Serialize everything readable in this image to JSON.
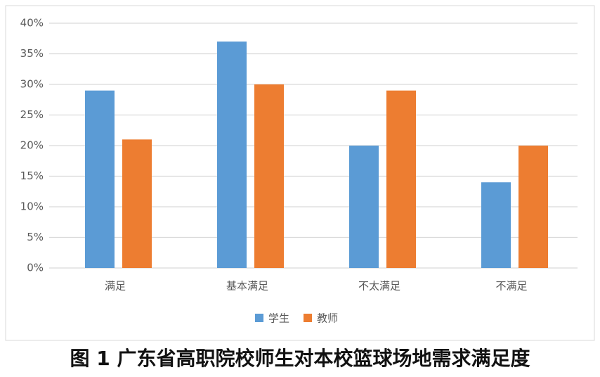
{
  "chart_data": {
    "type": "bar",
    "categories": [
      "满足",
      "基本满足",
      "不太满足",
      "不满足"
    ],
    "series": [
      {
        "name": "学生",
        "color": "#5b9bd5",
        "values": [
          29,
          37,
          20,
          14
        ]
      },
      {
        "name": "教师",
        "color": "#ed7d31",
        "values": [
          21,
          30,
          29,
          20
        ]
      }
    ],
    "ylim": [
      0,
      40
    ],
    "yticks": [
      {
        "value": 0,
        "label": "0%"
      },
      {
        "value": 5,
        "label": "5%"
      },
      {
        "value": 10,
        "label": "10%"
      },
      {
        "value": 15,
        "label": "15%"
      },
      {
        "value": 20,
        "label": "20%"
      },
      {
        "value": 25,
        "label": "25%"
      },
      {
        "value": 30,
        "label": "30%"
      },
      {
        "value": 35,
        "label": "35%"
      },
      {
        "value": 40,
        "label": "40%"
      }
    ],
    "grid": true,
    "legend": "bottom",
    "caption": "图 1  广东省高职院校师生对本校篮球场地需求满足度"
  }
}
